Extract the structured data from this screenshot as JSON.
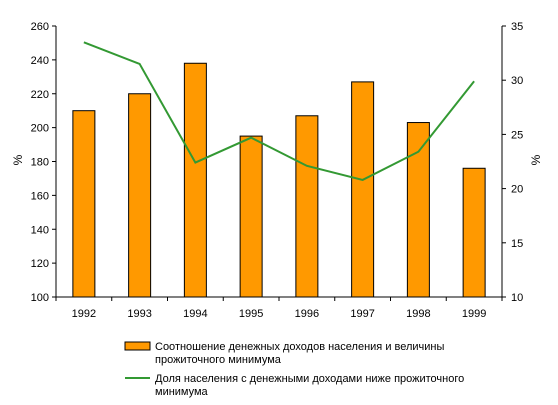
{
  "chart_data": {
    "type": "bar",
    "categories": [
      "1992",
      "1993",
      "1994",
      "1995",
      "1996",
      "1997",
      "1998",
      "1999"
    ],
    "series": [
      {
        "name": "Соотношение денежных доходов населения и величины прожиточного минимума",
        "type": "bar",
        "axis": "left",
        "color": "#FF9900",
        "values": [
          210,
          220,
          238,
          195,
          207,
          227,
          203,
          176
        ]
      },
      {
        "name": "Доля населения с денежными доходами ниже прожиточного минимума",
        "type": "line",
        "axis": "right",
        "color": "#339933",
        "values": [
          33.5,
          31.5,
          22.4,
          24.7,
          22.1,
          20.8,
          23.4,
          29.9
        ]
      }
    ],
    "ylabel": "%",
    "y2label": "%",
    "ylim": [
      100,
      260
    ],
    "y2lim": [
      10,
      35
    ],
    "yticks": [
      100,
      120,
      140,
      160,
      180,
      200,
      220,
      240,
      260
    ],
    "y2ticks": [
      10,
      15,
      20,
      25,
      30,
      35
    ],
    "legend_lines": [
      [
        "Соотношение денежных доходов населения и величины",
        "прожиточного минимума"
      ],
      [
        "Доля населения с денежными доходами ниже прожиточного",
        "минимума"
      ]
    ],
    "grid": false,
    "legend_position": "bottom"
  }
}
